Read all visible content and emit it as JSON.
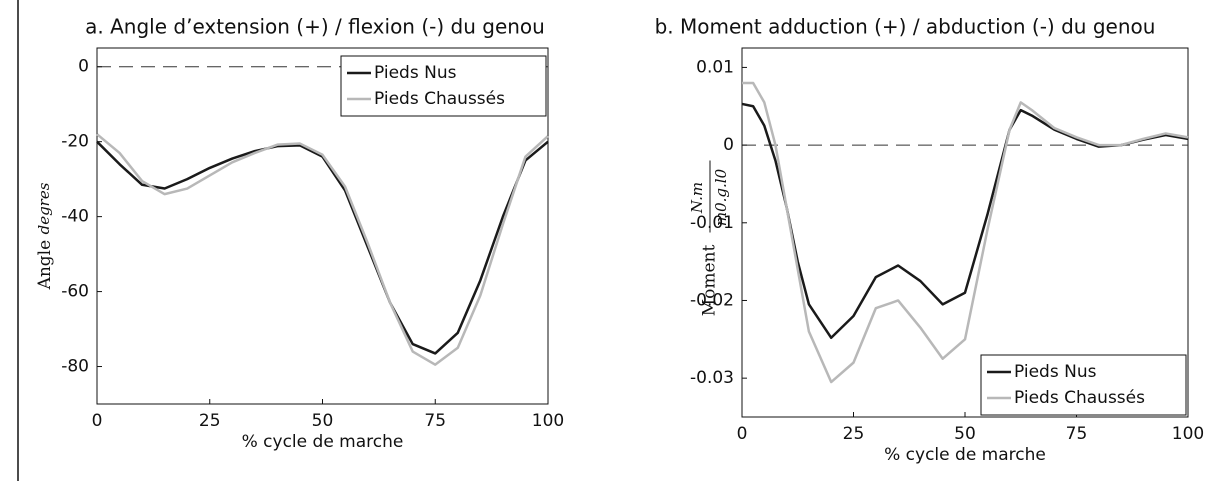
{
  "chart_data": [
    {
      "type": "line",
      "title": "a. Angle d’extension (+) / flexion (-) du genou",
      "xlabel": "% cycle de marche",
      "ylabel": "Angle",
      "ylabel_unit": "degres",
      "x": [
        0,
        5,
        10,
        15,
        20,
        25,
        30,
        35,
        40,
        45,
        50,
        55,
        60,
        65,
        70,
        75,
        80,
        85,
        90,
        95,
        100
      ],
      "series": [
        {
          "name": "Pieds Nus",
          "color": "#1a1a1a",
          "values": [
            -20,
            -26,
            -31.5,
            -32.5,
            -30,
            -27,
            -24.5,
            -22.5,
            -21.2,
            -21,
            -24,
            -33,
            -48,
            -63,
            -74,
            -76.5,
            -71,
            -57,
            -40,
            -25,
            -20
          ]
        },
        {
          "name": "Pieds Chaussés",
          "color": "#b8b8b8",
          "values": [
            -18,
            -23,
            -30.5,
            -34,
            -32.5,
            -29,
            -25.5,
            -23,
            -20.8,
            -20.5,
            -23.5,
            -32,
            -47,
            -63,
            -76,
            -79.5,
            -75,
            -61,
            -42,
            -24,
            -18.5
          ]
        }
      ],
      "xlim": [
        0,
        100
      ],
      "xticks": [
        0,
        25,
        50,
        75,
        100
      ],
      "ylim": [
        -90,
        5
      ],
      "yticks": [
        0,
        -20,
        -40,
        -60,
        -80
      ],
      "reference_line": 0,
      "legend": "upper right"
    },
    {
      "type": "line",
      "title": "b. Moment adduction (+) / abduction (-) du genou",
      "xlabel": "% cycle de marche",
      "ylabel": "Moment",
      "ylabel_numerator": "N.m",
      "ylabel_denominator": "m0.g.l0",
      "x": [
        0,
        2.5,
        5,
        7.5,
        10,
        12.5,
        15,
        20,
        25,
        30,
        35,
        40,
        45,
        50,
        55,
        60,
        62.5,
        65,
        70,
        75,
        80,
        85,
        90,
        95,
        100
      ],
      "series": [
        {
          "name": "Pieds Nus",
          "color": "#1a1a1a",
          "values": [
            0.0053,
            0.005,
            0.0025,
            -0.002,
            -0.008,
            -0.015,
            -0.0205,
            -0.0248,
            -0.022,
            -0.017,
            -0.0155,
            -0.0175,
            -0.0205,
            -0.019,
            -0.009,
            0.002,
            0.0045,
            0.0038,
            0.002,
            0.0008,
            -0.0002,
            0,
            0.0007,
            0.0013,
            0.0008
          ]
        },
        {
          "name": "Pieds Chaussés",
          "color": "#b8b8b8",
          "values": [
            0.008,
            0.008,
            0.0055,
            0,
            -0.008,
            -0.016,
            -0.024,
            -0.0305,
            -0.028,
            -0.021,
            -0.02,
            -0.0235,
            -0.0275,
            -0.025,
            -0.011,
            0.002,
            0.0055,
            0.0045,
            0.0022,
            0.001,
            0,
            0,
            0.0008,
            0.0015,
            0.001
          ]
        }
      ],
      "xlim": [
        0,
        100
      ],
      "xticks": [
        0,
        25,
        50,
        75,
        100
      ],
      "ylim": [
        -0.035,
        0.0125
      ],
      "yticks": [
        0.01,
        0,
        -0.01,
        -0.02,
        -0.03
      ],
      "reference_line": 0,
      "legend": "lower right"
    }
  ]
}
